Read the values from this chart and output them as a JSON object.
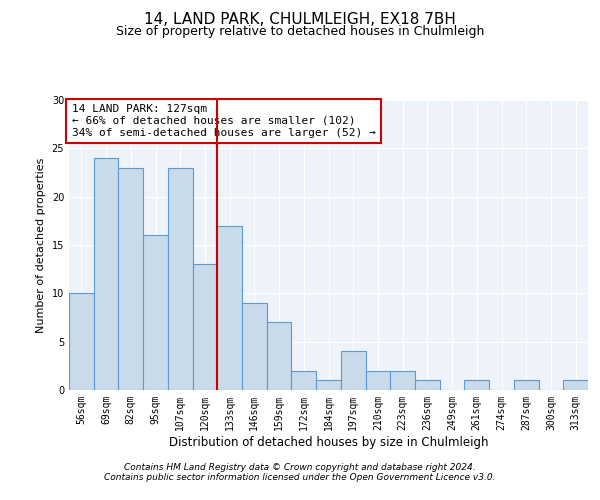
{
  "title1": "14, LAND PARK, CHULMLEIGH, EX18 7BH",
  "title2": "Size of property relative to detached houses in Chulmleigh",
  "xlabel": "Distribution of detached houses by size in Chulmleigh",
  "ylabel": "Number of detached properties",
  "categories": [
    "56sqm",
    "69sqm",
    "82sqm",
    "95sqm",
    "107sqm",
    "120sqm",
    "133sqm",
    "146sqm",
    "159sqm",
    "172sqm",
    "184sqm",
    "197sqm",
    "210sqm",
    "223sqm",
    "236sqm",
    "249sqm",
    "261sqm",
    "274sqm",
    "287sqm",
    "300sqm",
    "313sqm"
  ],
  "values": [
    10,
    24,
    23,
    16,
    23,
    13,
    17,
    9,
    7,
    2,
    1,
    4,
    2,
    2,
    1,
    0,
    1,
    0,
    1,
    0,
    1
  ],
  "bar_color": "#c9daea",
  "bar_edge_color": "#5b9bd5",
  "vline_x": 5.5,
  "vline_color": "#cc0000",
  "annotation_line1": "14 LAND PARK: 127sqm",
  "annotation_line2": "← 66% of detached houses are smaller (102)",
  "annotation_line3": "34% of semi-detached houses are larger (52) →",
  "annotation_box_color": "#ffffff",
  "annotation_box_edge": "#cc0000",
  "ylim": [
    0,
    30
  ],
  "yticks": [
    0,
    5,
    10,
    15,
    20,
    25,
    30
  ],
  "footer1": "Contains HM Land Registry data © Crown copyright and database right 2024.",
  "footer2": "Contains public sector information licensed under the Open Government Licence v3.0.",
  "bg_color": "#eef2f9",
  "fig_bg_color": "#ffffff",
  "title1_fontsize": 11,
  "title2_fontsize": 9,
  "xlabel_fontsize": 8.5,
  "ylabel_fontsize": 8,
  "tick_fontsize": 7,
  "footer_fontsize": 6.5,
  "annotation_fontsize": 8
}
